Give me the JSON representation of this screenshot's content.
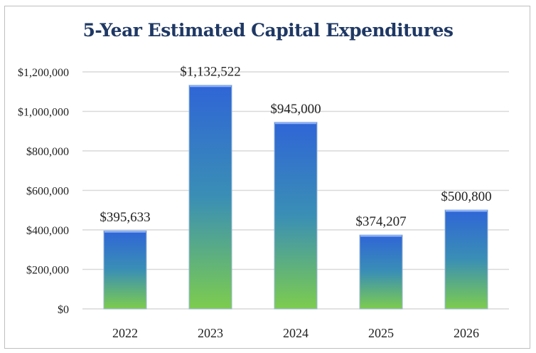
{
  "chart_data": {
    "type": "bar",
    "title": "5-Year Estimated Capital Expenditures",
    "categories": [
      "2022",
      "2023",
      "2024",
      "2025",
      "2026"
    ],
    "values": [
      395633,
      1132522,
      945000,
      374207,
      500800
    ],
    "data_labels": [
      "$395,633",
      "$1,132,522",
      "$945,000",
      "$374,207",
      "$500,800"
    ],
    "yticks": [
      0,
      200000,
      400000,
      600000,
      800000,
      1000000,
      1200000
    ],
    "ytick_labels": [
      "$0",
      "$200,000",
      "$400,000",
      "$600,000",
      "$800,000",
      "$1,000,000",
      "$1,200,000"
    ],
    "ylim": [
      0,
      1200000
    ],
    "xlabel": "",
    "ylabel": "",
    "grid": true,
    "legend": "none",
    "bar_gradient": {
      "top": "#2f65d6",
      "middle": "#3a8fb5",
      "bottom": "#7dcc4e"
    }
  }
}
